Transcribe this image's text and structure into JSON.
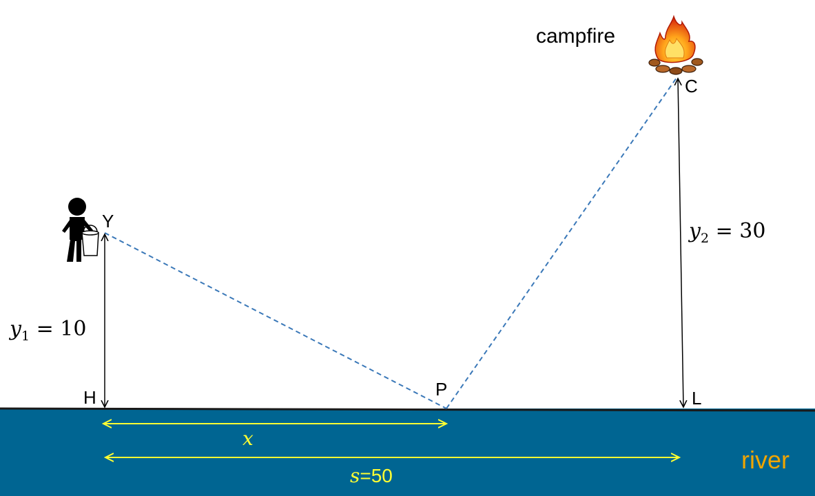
{
  "labels": {
    "campfire": "campfire",
    "Y": "Y",
    "C": "C",
    "H": "H",
    "P": "P",
    "L": "L",
    "river": "river"
  },
  "distances": {
    "y1_var": "y",
    "y1_sub": "1",
    "y1_rest": " = 10",
    "y2_var": "y",
    "y2_sub": "2",
    "y2_rest": " = 30",
    "x_var": "x",
    "s_var": "s",
    "s_rest": "=50"
  },
  "icons": {
    "person": "person-with-bucket-icon",
    "fire": "campfire-icon"
  },
  "colors": {
    "river": "#006592",
    "river_text": "#f0a500",
    "measure": "#ffff33",
    "path": "#3a78b8"
  }
}
